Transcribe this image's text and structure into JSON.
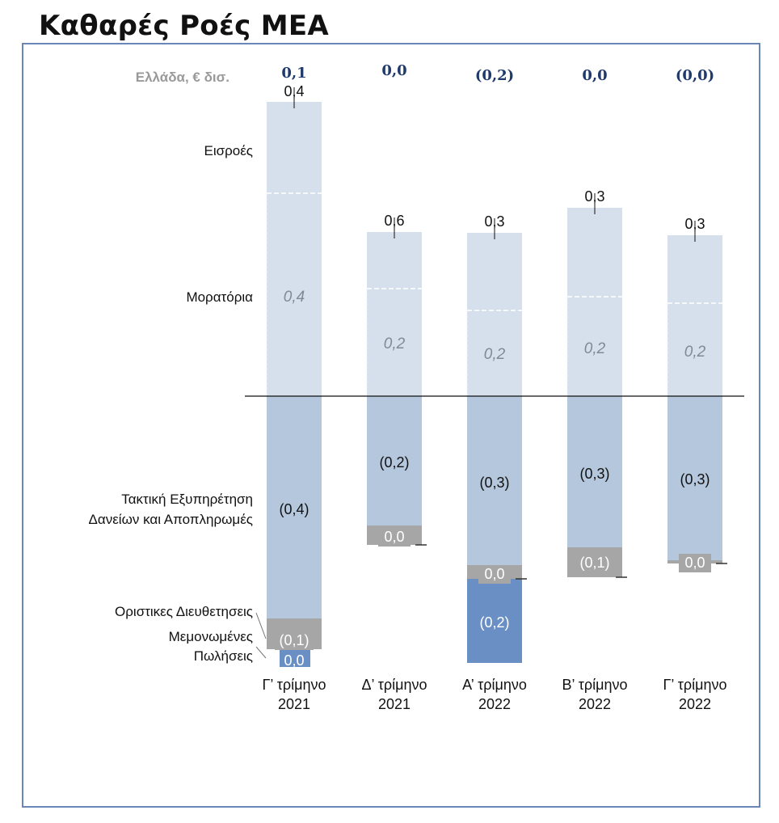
{
  "title": "Καθαρές Ροές ΜΕΑ",
  "colors": {
    "inflows": "#d6e0ec",
    "moratoria": "#d6e0ec",
    "regular": "#b5c7dc",
    "definitive": "#a6a6a6",
    "sales": "#6a8fc4",
    "net_text": "#1f3a6b",
    "frame": "#6b86b8"
  },
  "chart_data": {
    "type": "bar",
    "stacked": true,
    "unit_label": "Ελλάδα, € δισ.",
    "categories": [
      [
        "Γ’ τρίμηνο",
        "2021"
      ],
      [
        "Δ’ τρίμηνο",
        "2021"
      ],
      [
        "Α’ τρίμηνο",
        "2022"
      ],
      [
        "Β’ τρίμηνο",
        "2022"
      ],
      [
        "Γ’ τρίμηνο",
        "2022"
      ]
    ],
    "net_values": [
      "0,1",
      "0,0",
      "(0,2)",
      "0,0",
      "(0,0)"
    ],
    "series": [
      {
        "name": "Εισροές",
        "labels": [
          "0,4",
          "0,6",
          "0,3",
          "0,3",
          "0,3"
        ],
        "values": [
          0.4,
          0.6,
          0.3,
          0.3,
          0.3
        ]
      },
      {
        "name": "Μορατόρια",
        "labels": [
          "0,4",
          "0,2",
          "0,2",
          "0,2",
          "0,2"
        ],
        "values": [
          0.4,
          0.2,
          0.2,
          0.2,
          0.2
        ]
      },
      {
        "name": "Τακτική Εξυπηρέτηση Δανείων και Αποπληρωμές",
        "labels": [
          "(0,4)",
          "(0,2)",
          "(0,3)",
          "(0,3)",
          "(0,3)"
        ],
        "values": [
          -0.4,
          -0.2,
          -0.3,
          -0.3,
          -0.3
        ]
      },
      {
        "name": "Οριστικες Διευθετησεις",
        "labels": [
          "(0,1)",
          "0,0",
          "0,0",
          "(0,1)",
          "0,0"
        ],
        "values": [
          -0.1,
          0.0,
          0.0,
          -0.1,
          0.0
        ]
      },
      {
        "name": "Μεμονωμένες Πωλήσεις",
        "labels": [
          "0,0",
          "",
          "(0,2)",
          "",
          ""
        ],
        "values": [
          0.0,
          0.0,
          -0.2,
          0.0,
          0.0
        ]
      }
    ],
    "row_labels": {
      "inflows": "Εισροές",
      "moratoria": "Μορατόρια",
      "regular": [
        "Τακτική Εξυπηρέτηση",
        "Δανείων  και Αποπληρωμές"
      ],
      "definitive": "Οριστικες Διευθετησεις",
      "sales": [
        "Μεμονωμένες",
        "Πωλήσεις"
      ]
    }
  }
}
